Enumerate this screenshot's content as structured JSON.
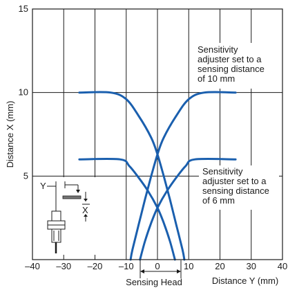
{
  "chart_data": {
    "type": "line",
    "xlabel": "Distance Y (mm)",
    "ylabel": "Distance X (mm)",
    "xlim": [
      -40,
      40
    ],
    "ylim": [
      0,
      15
    ],
    "x_ticks": [
      "–40",
      "–30",
      "–20",
      "–10",
      "0",
      "10",
      "20",
      "30",
      "40"
    ],
    "y_ticks": [
      "5",
      "10",
      "15"
    ],
    "grid": true,
    "colors": {
      "curve": "#1a5fae",
      "ink": "#1a1a1a"
    },
    "series": [
      {
        "group": "10mm",
        "points": [
          [
            -25,
            10
          ],
          [
            -15,
            10
          ],
          [
            -10,
            9.6
          ],
          [
            -6,
            8.6
          ],
          [
            -2,
            7.3
          ],
          [
            0,
            6.3
          ],
          [
            2,
            5.0
          ],
          [
            4,
            3.6
          ],
          [
            6,
            2.1
          ],
          [
            8,
            0.6
          ],
          [
            8.6,
            0
          ]
        ]
      },
      {
        "group": "10mm",
        "points": [
          [
            25,
            10
          ],
          [
            15,
            10
          ],
          [
            10,
            9.6
          ],
          [
            6,
            8.6
          ],
          [
            2,
            7.3
          ],
          [
            0,
            6.3
          ],
          [
            -2,
            5.0
          ],
          [
            -4,
            3.6
          ],
          [
            -6,
            2.1
          ],
          [
            -8,
            0.6
          ],
          [
            -8.6,
            0
          ]
        ]
      },
      {
        "group": "6mm",
        "points": [
          [
            -25,
            6
          ],
          [
            -12,
            6
          ],
          [
            -9,
            5.6
          ],
          [
            -6,
            4.9
          ],
          [
            -3,
            4.1
          ],
          [
            0,
            3.1
          ],
          [
            2,
            2.2
          ],
          [
            4,
            1.1
          ],
          [
            5.6,
            0
          ]
        ]
      },
      {
        "group": "6mm",
        "points": [
          [
            25,
            6
          ],
          [
            12,
            6
          ],
          [
            9,
            5.6
          ],
          [
            6,
            4.9
          ],
          [
            3,
            4.1
          ],
          [
            0,
            3.1
          ],
          [
            -2,
            2.2
          ],
          [
            -4,
            1.1
          ],
          [
            -5.6,
            0
          ]
        ]
      }
    ],
    "annotations": {
      "top": [
        "Sensitivity",
        "adjuster set to a",
        "sensing distance",
        "of 10 mm"
      ],
      "bottom": [
        "Sensitivity",
        "adjuster set to a",
        "sensing distance",
        "of 6 mm"
      ],
      "sensing_head": "Sensing Head"
    },
    "inset": {
      "label_y": "Y",
      "label_x": "X"
    }
  }
}
